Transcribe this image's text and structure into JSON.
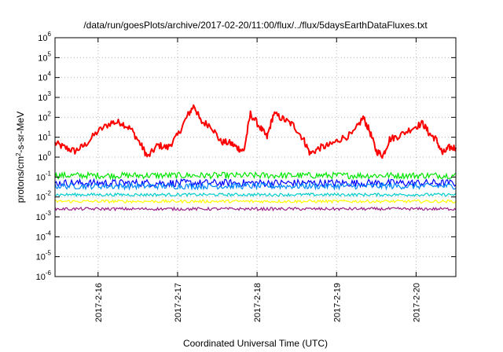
{
  "chart_data": {
    "type": "line",
    "title": "/data/run/goesPlots/archive/2017-02-20/11:00/flux/../flux/5daysEarthDataFluxes.txt",
    "xlabel": "Coordinated Universal Time (UTC)",
    "ylabel_prefix": "protons/cm",
    "ylabel_sup": "2",
    "ylabel_suffix": "-s-sr-MeV",
    "y_scale": "log",
    "ylim": [
      1e-06,
      1000000.0
    ],
    "y_ticks": [
      {
        "value": 1e-06,
        "base": "10",
        "exp": "-6"
      },
      {
        "value": 1e-05,
        "base": "10",
        "exp": "-5"
      },
      {
        "value": 0.0001,
        "base": "10",
        "exp": "-4"
      },
      {
        "value": 0.001,
        "base": "10",
        "exp": "-3"
      },
      {
        "value": 0.01,
        "base": "10",
        "exp": "-2"
      },
      {
        "value": 0.1,
        "base": "10",
        "exp": "-1"
      },
      {
        "value": 1,
        "base": "10",
        "exp": "0"
      },
      {
        "value": 10,
        "base": "10",
        "exp": "1"
      },
      {
        "value": 100,
        "base": "10",
        "exp": "2"
      },
      {
        "value": 1000,
        "base": "10",
        "exp": "3"
      },
      {
        "value": 10000,
        "base": "10",
        "exp": "4"
      },
      {
        "value": 100000,
        "base": "10",
        "exp": "5"
      },
      {
        "value": 1000000,
        "base": "10",
        "exp": "6"
      }
    ],
    "x_range": [
      "2017-02-15 11:00",
      "2017-02-20 12:00"
    ],
    "x_ticks": [
      {
        "value": "2017-02-16 00:00",
        "label": "2017-2-16"
      },
      {
        "value": "2017-02-17 00:00",
        "label": "2017-2-17"
      },
      {
        "value": "2017-02-18 00:00",
        "label": "2017-2-18"
      },
      {
        "value": "2017-02-19 00:00",
        "label": "2017-2-19"
      },
      {
        "value": "2017-02-20 00:00",
        "label": "2017-2-20"
      }
    ],
    "grid": true,
    "legend": "none",
    "series": [
      {
        "color": "#ff0000",
        "points": [
          [
            "2017-02-15 11:00",
            5
          ],
          [
            "2017-02-15 14:00",
            3
          ],
          [
            "2017-02-15 17:00",
            2
          ],
          [
            "2017-02-15 20:00",
            4
          ],
          [
            "2017-02-16 00:00",
            20
          ],
          [
            "2017-02-16 04:00",
            55
          ],
          [
            "2017-02-16 07:00",
            55
          ],
          [
            "2017-02-16 10:00",
            25
          ],
          [
            "2017-02-16 13:00",
            4
          ],
          [
            "2017-02-16 15:00",
            1
          ],
          [
            "2017-02-16 18:00",
            4
          ],
          [
            "2017-02-16 21:00",
            3
          ],
          [
            "2017-02-17 00:00",
            12
          ],
          [
            "2017-02-17 03:00",
            120
          ],
          [
            "2017-02-17 05:00",
            400
          ],
          [
            "2017-02-17 07:00",
            60
          ],
          [
            "2017-02-17 10:00",
            40
          ],
          [
            "2017-02-17 13:00",
            6
          ],
          [
            "2017-02-17 16:00",
            5
          ],
          [
            "2017-02-17 18:00",
            3
          ],
          [
            "2017-02-17 20:00",
            2
          ],
          [
            "2017-02-17 22:00",
            150
          ],
          [
            "2017-02-18 01:00",
            30
          ],
          [
            "2017-02-18 03:00",
            10
          ],
          [
            "2017-02-18 05:00",
            150
          ],
          [
            "2017-02-18 08:00",
            80
          ],
          [
            "2017-02-18 11:00",
            40
          ],
          [
            "2017-02-18 14:00",
            8
          ],
          [
            "2017-02-18 16:00",
            1.5
          ],
          [
            "2017-02-18 19:00",
            3
          ],
          [
            "2017-02-18 22:00",
            4
          ],
          [
            "2017-02-19 01:00",
            8
          ],
          [
            "2017-02-19 05:00",
            15
          ],
          [
            "2017-02-19 08:00",
            100
          ],
          [
            "2017-02-19 10:00",
            20
          ],
          [
            "2017-02-19 12:00",
            2
          ],
          [
            "2017-02-19 14:00",
            1.2
          ],
          [
            "2017-02-19 16:00",
            8
          ],
          [
            "2017-02-19 19:00",
            12
          ],
          [
            "2017-02-19 23:00",
            30
          ],
          [
            "2017-02-20 02:00",
            50
          ],
          [
            "2017-02-20 04:00",
            15
          ],
          [
            "2017-02-20 06:00",
            8
          ],
          [
            "2017-02-20 08:00",
            1.5
          ],
          [
            "2017-02-20 10:00",
            3
          ],
          [
            "2017-02-20 12:00",
            3
          ]
        ]
      },
      {
        "color": "#00e600",
        "points": [
          [
            "2017-02-15 11:00",
            0.12
          ],
          [
            "2017-02-20 12:00",
            0.12
          ]
        ]
      },
      {
        "color": "#0000ff",
        "points": [
          [
            "2017-02-15 11:00",
            0.05
          ],
          [
            "2017-02-20 12:00",
            0.05
          ]
        ]
      },
      {
        "color": "#0088ff",
        "points": [
          [
            "2017-02-15 11:00",
            0.035
          ],
          [
            "2017-02-20 12:00",
            0.035
          ]
        ]
      },
      {
        "color": "#00cccc",
        "points": [
          [
            "2017-02-15 11:00",
            0.013
          ],
          [
            "2017-02-20 12:00",
            0.013
          ]
        ]
      },
      {
        "color": "#ffff00",
        "points": [
          [
            "2017-02-15 11:00",
            0.006
          ],
          [
            "2017-02-20 12:00",
            0.006
          ]
        ]
      },
      {
        "color": "#9b1f8a",
        "points": [
          [
            "2017-02-15 11:00",
            0.0025
          ],
          [
            "2017-02-20 12:00",
            0.0025
          ]
        ]
      }
    ]
  }
}
